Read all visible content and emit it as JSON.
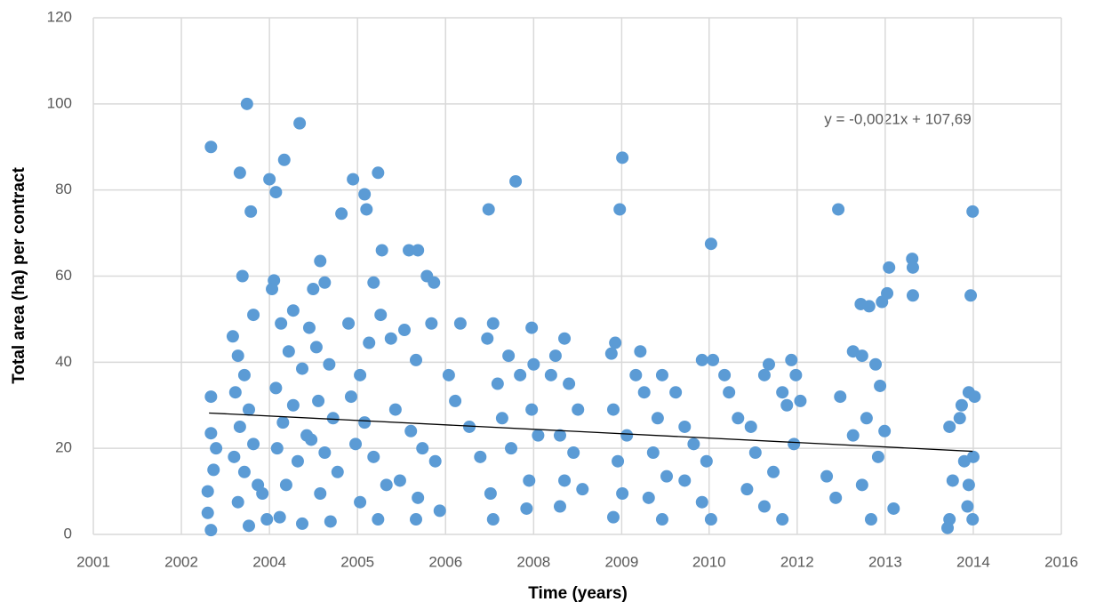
{
  "chart_data": {
    "type": "scatter",
    "xlabel": "Time (years)",
    "ylabel": "Total area (ha) per contract",
    "annotation": "y = -0,0021x + 107,69",
    "color": "#5b9bd5",
    "grid": true,
    "xlim": [
      2001,
      2016.06
    ],
    "ylim": [
      0,
      120
    ],
    "yticks": [
      0,
      20,
      40,
      60,
      80,
      100,
      120
    ],
    "xticks": [
      {
        "value": 2001,
        "label": "2001"
      },
      {
        "value": 2002.37,
        "label": "2002"
      },
      {
        "value": 2003.74,
        "label": "2004"
      },
      {
        "value": 2005.11,
        "label": "2005"
      },
      {
        "value": 2006.48,
        "label": "2006"
      },
      {
        "value": 2007.85,
        "label": "2008"
      },
      {
        "value": 2009.22,
        "label": "2009"
      },
      {
        "value": 2010.58,
        "label": "2010"
      },
      {
        "value": 2011.95,
        "label": "2012"
      },
      {
        "value": 2013.32,
        "label": "2013"
      },
      {
        "value": 2014.69,
        "label": "2014"
      },
      {
        "value": 2016.06,
        "label": "2016"
      }
    ],
    "trendline": {
      "x": [
        2002.8,
        2014.68
      ],
      "values": [
        28.2,
        19.3
      ]
    },
    "x": [
      2002.83,
      2002.83,
      2002.83,
      2002.78,
      2002.78,
      2002.83,
      2002.91,
      2002.87,
      2003.28,
      2003.39,
      2003.45,
      2003.32,
      2003.49,
      2003.17,
      2003.25,
      2003.35,
      2003.21,
      2003.42,
      2003.28,
      2003.49,
      2003.19,
      2003.35,
      2003.56,
      2003.25,
      2003.42,
      2003.7,
      2003.63,
      2003.74,
      2003.84,
      2003.81,
      2003.78,
      2003.97,
      2004.21,
      2004.11,
      2003.92,
      2004.04,
      2004.25,
      2003.84,
      2004.11,
      2003.95,
      2004.32,
      2003.86,
      2004.18,
      2004.0,
      2003.9,
      2004.25,
      2004.36,
      2004.42,
      2004.53,
      2004.6,
      2004.47,
      2004.67,
      2004.5,
      2004.73,
      2004.39,
      2004.6,
      2004.8,
      2004.53,
      2004.69,
      2004.86,
      2005.04,
      2005.22,
      2005.25,
      2005.43,
      2005.49,
      2005.36,
      2004.97,
      2005.47,
      2005.29,
      2005.15,
      2005.01,
      2005.22,
      2005.08,
      2005.36,
      2005.56,
      2005.15,
      2005.43,
      2005.91,
      2006.05,
      2006.19,
      2006.3,
      2005.63,
      2005.84,
      2006.02,
      2006.26,
      2005.7,
      2005.94,
      2006.12,
      2006.32,
      2005.77,
      2006.05,
      2006.39,
      2006.02,
      2006.71,
      2006.53,
      2006.63,
      2006.85,
      2007.02,
      2007.15,
      2007.13,
      2007.22,
      2007.29,
      2007.46,
      2007.57,
      2007.64,
      2007.18,
      2007.36,
      2007.5,
      2007.22,
      2007.82,
      2007.85,
      2007.82,
      2007.92,
      2007.78,
      2007.74,
      2008.12,
      2008.33,
      2008.19,
      2008.4,
      2008.54,
      2008.26,
      2008.47,
      2008.33,
      2008.61,
      2008.26,
      2009.06,
      2009.12,
      2009.23,
      2009.19,
      2009.09,
      2009.3,
      2009.16,
      2009.23,
      2009.09,
      2009.44,
      2009.51,
      2009.57,
      2009.78,
      2009.85,
      2009.71,
      2009.92,
      2009.64,
      2009.85,
      2010.06,
      2010.2,
      2010.47,
      2010.61,
      2010.64,
      2010.34,
      2010.54,
      2010.2,
      2010.47,
      2010.61,
      2010.82,
      2010.89,
      2011.03,
      2011.23,
      2011.44,
      2011.51,
      2011.72,
      2011.79,
      2011.86,
      2011.93,
      2011.3,
      2011.58,
      2011.17,
      2011.44,
      2011.72,
      2012.0,
      2011.9,
      2012.41,
      2012.55,
      2012.62,
      2012.82,
      2012.82,
      2012.96,
      2012.94,
      2013.07,
      2012.59,
      2013.17,
      2013.24,
      2013.03,
      2013.21,
      2012.96,
      2013.1,
      2013.27,
      2013.35,
      2013.38,
      2013.31,
      2013.45,
      2013.74,
      2013.75,
      2013.75,
      2014.32,
      2014.37,
      2014.32,
      2014.29,
      2014.48,
      2014.55,
      2014.62,
      2014.71,
      2014.65,
      2014.68,
      2014.62,
      2014.6,
      2014.68,
      2014.69,
      2014.51
    ],
    "values": [
      90,
      32,
      23.5,
      10,
      5,
      1,
      20,
      15,
      84,
      100,
      75,
      60,
      51,
      46,
      41.5,
      37,
      33,
      29,
      25,
      21,
      18,
      14.5,
      11.5,
      7.5,
      2,
      3.5,
      9.5,
      82.5,
      79.5,
      59,
      57,
      87,
      95.5,
      52,
      49,
      42.5,
      38.5,
      34,
      30,
      26,
      23,
      20,
      17,
      11.5,
      4,
      2.5,
      48,
      57,
      63.5,
      58.5,
      43.5,
      39.5,
      31,
      27,
      22,
      19,
      14.5,
      9.5,
      3,
      74.5,
      82.5,
      79,
      75.5,
      84,
      66,
      58.5,
      49,
      51,
      44.5,
      37,
      32,
      26,
      21,
      18,
      11.5,
      7.5,
      3.5,
      66,
      66,
      60,
      58.5,
      45.5,
      47.5,
      40.5,
      49,
      29,
      24,
      20,
      17,
      12.5,
      8.5,
      5.5,
      3.5,
      49,
      37,
      31,
      25,
      18,
      75.5,
      45.5,
      49,
      35,
      41.5,
      82,
      37,
      9.5,
      27,
      20,
      3.5,
      48,
      39.5,
      29,
      23,
      12.5,
      6,
      37,
      45.5,
      41.5,
      35,
      29,
      23,
      19,
      12.5,
      10.5,
      6.5,
      42,
      44.5,
      87.5,
      75.5,
      29,
      23,
      17,
      9.5,
      4,
      37,
      42.5,
      33,
      27,
      37,
      19,
      13.5,
      8.5,
      3.5,
      33,
      25,
      40.5,
      67.5,
      40.5,
      21,
      17,
      12.5,
      7.5,
      3.5,
      37,
      33,
      27,
      25,
      37,
      39.5,
      33,
      30,
      40.5,
      37,
      19,
      14.5,
      10.5,
      6.5,
      3.5,
      31,
      21,
      13.5,
      8.5,
      32,
      23,
      42.5,
      41.5,
      53.5,
      53,
      75.5,
      39.5,
      34.5,
      27,
      18,
      11.5,
      3.5,
      54,
      56,
      62,
      24,
      6,
      64,
      62,
      55.5,
      25,
      12.5,
      3.5,
      1.5,
      27,
      17,
      33,
      32,
      55.5,
      75,
      11.5,
      6.5,
      3.5,
      18,
      30
    ]
  }
}
